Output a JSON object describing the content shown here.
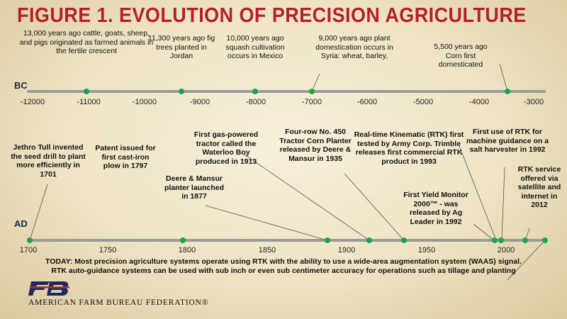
{
  "title": "FIGURE 1. EVOLUTION OF PRECISION AGRICULTURE",
  "bc": {
    "label": "BC",
    "ticks": [
      "-12000",
      "-11000",
      "-10000",
      "-9000",
      "-8000",
      "-7000",
      "-6000",
      "-5000",
      "-4000",
      "-3000"
    ],
    "events": [
      {
        "text": "13,000 years ago cattle, goats, sheep, and pigs originated as farmed animals in the fertile crescent"
      },
      {
        "text": "11,300 years ago fig trees planted in Jordan"
      },
      {
        "text": "10,000 years ago squash cultivation occurs in Mexico"
      },
      {
        "text": "9,000 years ago plant domestication occurs in Syria: wheat, barley,"
      },
      {
        "text": "5,500 years ago Corn first domesticated"
      }
    ]
  },
  "ad": {
    "label": "AD",
    "ticks": [
      "1700",
      "1750",
      "1800",
      "1850",
      "1900",
      "1950",
      "2000"
    ],
    "events": [
      {
        "text": "Jethro Tull invented the seed drill to plant more efficiently in 1701"
      },
      {
        "text": "Patent issued for first cast-iron plow in 1797"
      },
      {
        "text": "Deere & Mansur planter launched in 1877"
      },
      {
        "text": "First gas-powered tractor called the Waterloo Boy produced in 1913"
      },
      {
        "text": "Four-row No. 450 Tractor Corn Planter released by Deere & Mansur in 1935"
      },
      {
        "text": "Real-time Kinematic (RTK) first tested by Army Corp. Trimble releases first commercial RTK product in 1993"
      },
      {
        "text": "First Yield Monitor 2000™ - was released by Ag Leader in 1992"
      },
      {
        "text": "First use of RTK for machine guidance on a salt harvester in 1992"
      },
      {
        "text": "RTK service offered via satellite and internet in 2012"
      }
    ]
  },
  "today": "TODAY: Most precision agriculture systems operate using RTK with the ability to use a wide-area augmentation system (WAAS) signal. RTK auto-guidance systems can be used with sub inch or even sub centimeter accuracy for operations such as tillage and planting",
  "org": "AMERICAN FARM BUREAU FEDERATION®",
  "colors": {
    "title": "#b3202a",
    "dot": "#1fa34a",
    "line": "#9a9a9a",
    "logo_blue": "#1b2a5e",
    "logo_red": "#c8202f"
  }
}
